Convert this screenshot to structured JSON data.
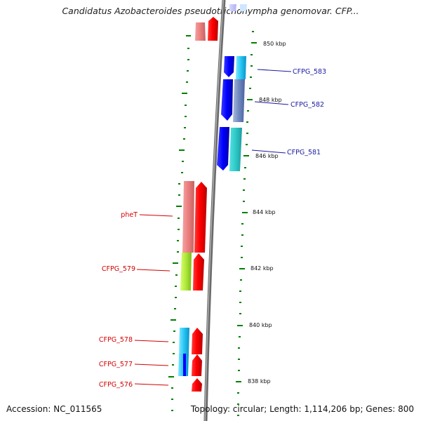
{
  "title": "Candidatus Azobacteroides pseudotrichonympha genomovar. CFP...",
  "footer": {
    "accession": "Accession: NC_011565",
    "topology": "Topology: circular; Length: 1,114,206 bp; Genes: 800"
  },
  "scale_labels": [
    "850 kbp",
    "848 kbp",
    "846 kbp",
    "844 kbp",
    "842 kbp",
    "840 kbp",
    "838 kbp"
  ],
  "genes_reverse": [
    "CFPG_583",
    "CFPG_582",
    "CFPG_581"
  ],
  "genes_forward": [
    "pheT",
    "CFPG_579",
    "CFPG_578",
    "CFPG_577",
    "CFPG_576"
  ],
  "colors": {
    "forward_strand": "#ff0000",
    "reverse_strand": "#0000ff",
    "reverse_label": "#1a1aa0",
    "forward_label": "#d40000",
    "tick": "#008000",
    "backbone": "#808080"
  }
}
